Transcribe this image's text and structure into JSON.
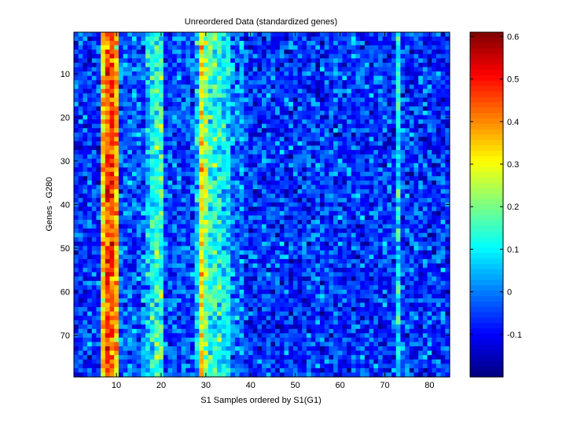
{
  "chart_data": {
    "type": "heatmap",
    "title": "Unreordered Data (standardized genes)",
    "xlabel": "S1 Samples ordered by S1(G1)",
    "ylabel": "Genes - G280",
    "n_cols": 84,
    "n_rows": 79,
    "x_range": [
      0.5,
      84.5
    ],
    "y_range": [
      0.5,
      79.5
    ],
    "y_direction": "reverse",
    "x_ticks": [
      10,
      20,
      30,
      40,
      50,
      60,
      70,
      80
    ],
    "y_ticks": [
      10,
      20,
      30,
      40,
      50,
      60,
      70
    ],
    "colormap": "jet",
    "clim": [
      -0.2,
      0.61
    ],
    "colorbar_ticks": [
      -0.1,
      0,
      0.1,
      0.2,
      0.3,
      0.4,
      0.5,
      0.6
    ],
    "column_profile": [
      {
        "cols": [
          1,
          6
        ],
        "mean": -0.06
      },
      {
        "cols": [
          7,
          7
        ],
        "mean": 0.35
      },
      {
        "cols": [
          8,
          9
        ],
        "mean": 0.46
      },
      {
        "cols": [
          10,
          10
        ],
        "mean": 0.36
      },
      {
        "cols": [
          11,
          16
        ],
        "mean": -0.03
      },
      {
        "cols": [
          17,
          17
        ],
        "mean": 0.06
      },
      {
        "cols": [
          18,
          18
        ],
        "mean": 0.1
      },
      {
        "cols": [
          19,
          20
        ],
        "mean": 0.15
      },
      {
        "cols": [
          21,
          27
        ],
        "mean": -0.04
      },
      {
        "cols": [
          28,
          28
        ],
        "mean": 0.06
      },
      {
        "cols": [
          29,
          29
        ],
        "mean": 0.3
      },
      {
        "cols": [
          30,
          30
        ],
        "mean": 0.22
      },
      {
        "cols": [
          31,
          33
        ],
        "mean": 0.13
      },
      {
        "cols": [
          34,
          35
        ],
        "mean": 0.08
      },
      {
        "cols": [
          36,
          38
        ],
        "mean": 0.0
      },
      {
        "cols": [
          39,
          72
        ],
        "mean": -0.06
      },
      {
        "cols": [
          73,
          73
        ],
        "mean": 0.1
      },
      {
        "cols": [
          74,
          84
        ],
        "mean": -0.06
      }
    ]
  }
}
